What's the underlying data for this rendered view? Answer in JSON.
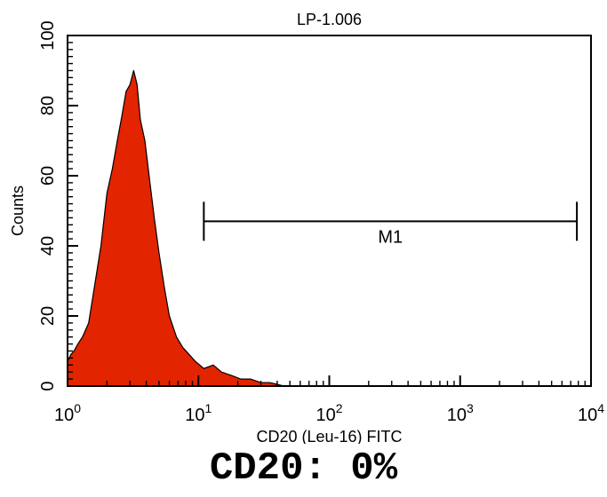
{
  "chart_data": {
    "type": "area",
    "title": "LP-1.006",
    "xlabel": "CD20 (Leu-16) FITC",
    "ylabel": "Counts",
    "x_scale": "log",
    "xlim": [
      1,
      10000
    ],
    "ylim": [
      0,
      100
    ],
    "x_ticks": [
      {
        "base": "10",
        "exp": "0"
      },
      {
        "base": "10",
        "exp": "1"
      },
      {
        "base": "10",
        "exp": "2"
      },
      {
        "base": "10",
        "exp": "3"
      },
      {
        "base": "10",
        "exp": "4"
      }
    ],
    "y_ticks": [
      "0",
      "20",
      "40",
      "60",
      "80",
      "100"
    ],
    "grid": false,
    "fill_color": "#e32400",
    "series": [
      {
        "x": [
          1.0,
          1.06,
          1.12,
          1.2,
          1.3,
          1.45,
          1.6,
          1.8,
          2.0,
          2.2,
          2.4,
          2.6,
          2.8,
          3.0,
          3.2,
          3.4,
          3.6,
          3.9,
          4.2,
          4.6,
          5.0,
          5.5,
          6.0,
          6.8,
          7.6,
          8.5,
          9.5,
          11,
          13,
          15,
          18,
          21,
          25,
          30,
          35,
          40,
          45
        ],
        "y": [
          7,
          9,
          10,
          12,
          14,
          18,
          28,
          40,
          55,
          62,
          70,
          77,
          84,
          86,
          90,
          86,
          76,
          70,
          60,
          48,
          38,
          28,
          20,
          14,
          11,
          9,
          7,
          5,
          6,
          4,
          3,
          2,
          2,
          1,
          1,
          0.5,
          0
        ]
      }
    ],
    "markers": [
      {
        "label": "M1",
        "x_start": 11,
        "x_end": 7800,
        "y": 47
      }
    ]
  },
  "caption": "CD20: 0%"
}
